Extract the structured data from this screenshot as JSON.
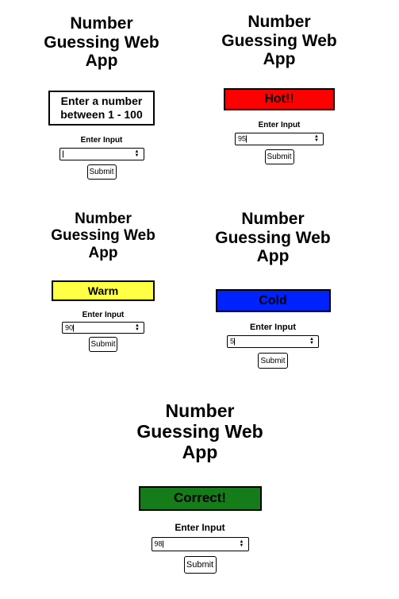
{
  "app_title": "Number Guessing Web App",
  "input_label": "Enter Input",
  "submit_label": "Submit",
  "spin_up": "▲",
  "spin_down": "▼",
  "panels": [
    {
      "id": "initial",
      "status_text": "Enter a number between 1 - 100",
      "status_color": "#ffffff",
      "input_value": ""
    },
    {
      "id": "hot",
      "status_text": "Hot!!",
      "status_color": "#ff0000",
      "input_value": "95"
    },
    {
      "id": "warm",
      "status_text": "Warm",
      "status_color": "#ffff44",
      "input_value": "90"
    },
    {
      "id": "cold",
      "status_text": "Cold",
      "status_color": "#0022ff",
      "input_value": "5"
    },
    {
      "id": "correct",
      "status_text": "Correct!",
      "status_color": "#157c1a",
      "input_value": "98"
    }
  ]
}
